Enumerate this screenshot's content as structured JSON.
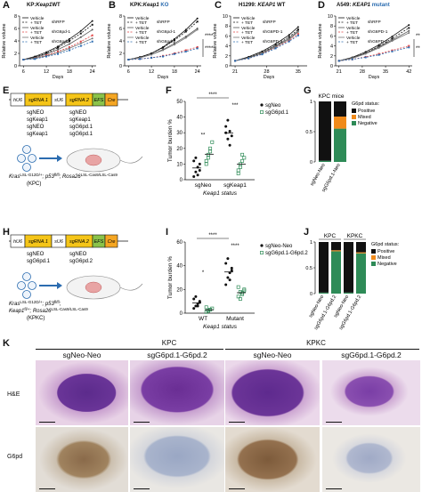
{
  "panels": {
    "A": {
      "label": "A",
      "title_prefix": "KP:",
      "title_gene": "Keap1",
      "title_suffix": "WT"
    },
    "B": {
      "label": "B",
      "title_prefix": "KPK:",
      "title_gene": "Keap1",
      "title_suffix": "KO"
    },
    "C": {
      "label": "C",
      "title_prefix": "H1299:",
      "title_gene": "KEAP1",
      "title_suffix": "WT"
    },
    "D": {
      "label": "D",
      "title_prefix": "A549:",
      "title_gene": "KEAP1",
      "title_suffix": "mutant"
    },
    "E": {
      "label": "E"
    },
    "F": {
      "label": "F"
    },
    "G": {
      "label": "G",
      "title": "KPC mice"
    },
    "H": {
      "label": "H"
    },
    "I": {
      "label": "I"
    },
    "J": {
      "label": "J"
    },
    "K": {
      "label": "K"
    }
  },
  "growth_legend": {
    "vehicle": "Vehicle",
    "tet": "+ TET",
    "A": [
      "shRFP",
      "shG6pd-1",
      "shG6pd-2"
    ],
    "B": [
      "shRFP",
      "shG6pd-1",
      "shG6pd-2"
    ],
    "C": [
      "shRFP",
      "shG6PD-1",
      "shG6PD-2"
    ],
    "D": [
      "shRFP",
      "shG6PD-1",
      "shG6PD-2"
    ]
  },
  "chart_data": [
    {
      "id": "A",
      "type": "line",
      "ylabel": "Relative volume",
      "xlabel": "Days",
      "xticks": [
        6,
        12,
        18,
        24
      ],
      "xlim": [
        5,
        25
      ],
      "yticks": [
        0,
        2,
        4,
        6,
        8
      ],
      "ylim": [
        0,
        8
      ],
      "series": [
        {
          "name": "Vehicle shRFP",
          "x": [
            6,
            9,
            12,
            15,
            18,
            21,
            24
          ],
          "values": [
            1,
            1.5,
            2.2,
            3.1,
            4.3,
            5.6,
            7.2
          ]
        },
        {
          "name": "+ TET shRFP",
          "x": [
            6,
            9,
            12,
            15,
            18,
            21,
            24
          ],
          "values": [
            1,
            1.4,
            2.0,
            2.9,
            4.0,
            5.2,
            6.6
          ]
        },
        {
          "name": "Vehicle shG6pd-1",
          "x": [
            6,
            9,
            12,
            15,
            18,
            21,
            24
          ],
          "values": [
            1,
            1.3,
            1.9,
            2.6,
            3.5,
            4.6,
            5.8
          ]
        },
        {
          "name": "+ TET shG6pd-1",
          "x": [
            6,
            9,
            12,
            15,
            18,
            21,
            24
          ],
          "values": [
            1,
            1.2,
            1.7,
            2.3,
            3.0,
            3.9,
            4.9
          ]
        },
        {
          "name": "Vehicle shG6pd-2",
          "x": [
            6,
            9,
            12,
            15,
            18,
            21,
            24
          ],
          "values": [
            1,
            1.2,
            1.6,
            2.1,
            2.8,
            3.6,
            4.4
          ]
        },
        {
          "name": "+ TET shG6pd-2",
          "x": [
            6,
            9,
            12,
            15,
            18,
            21,
            24
          ],
          "values": [
            1,
            1.1,
            1.5,
            1.9,
            2.5,
            3.2,
            3.9
          ]
        }
      ]
    },
    {
      "id": "B",
      "type": "line",
      "ylabel": "Relative volume",
      "xlabel": "Days",
      "xticks": [
        6,
        12,
        18,
        24
      ],
      "xlim": [
        5,
        25
      ],
      "yticks": [
        0,
        2,
        4,
        6,
        8
      ],
      "ylim": [
        0,
        8
      ],
      "series": [
        {
          "name": "Vehicle shRFP",
          "x": [
            6,
            9,
            12,
            15,
            18,
            21,
            24
          ],
          "values": [
            1,
            1.4,
            2.0,
            3.0,
            4.3,
            5.8,
            7.6
          ]
        },
        {
          "name": "+ TET shRFP",
          "x": [
            6,
            9,
            12,
            15,
            18,
            21,
            24
          ],
          "values": [
            1,
            1.4,
            2.0,
            2.9,
            4.1,
            5.5,
            7.1
          ]
        },
        {
          "name": "Vehicle shG6pd-1",
          "x": [
            6,
            9,
            12,
            15,
            18,
            21,
            24
          ],
          "values": [
            1,
            1.3,
            1.8,
            2.6,
            3.6,
            4.7,
            6.0
          ]
        },
        {
          "name": "+ TET shG6pd-1",
          "x": [
            6,
            9,
            12,
            15,
            18,
            21,
            24
          ],
          "values": [
            1,
            1.1,
            1.3,
            1.6,
            2.0,
            2.5,
            3.0
          ]
        },
        {
          "name": "Vehicle shG6pd-2",
          "x": [
            6,
            9,
            12,
            15,
            18,
            21,
            24
          ],
          "values": [
            1,
            1.3,
            1.8,
            2.5,
            3.4,
            4.5,
            5.8
          ]
        },
        {
          "name": "+ TET shG6pd-2",
          "x": [
            6,
            9,
            12,
            15,
            18,
            21,
            24
          ],
          "values": [
            1,
            1.1,
            1.3,
            1.5,
            1.9,
            2.3,
            2.8
          ]
        }
      ],
      "annotations": [
        "****",
        "****"
      ]
    },
    {
      "id": "C",
      "type": "line",
      "ylabel": "Relative volume",
      "xlabel": "Days",
      "xticks": [
        21,
        28,
        35
      ],
      "xlim": [
        20,
        37
      ],
      "yticks": [
        0,
        2,
        4,
        6,
        8,
        10
      ],
      "ylim": [
        0,
        10
      ],
      "series": [
        {
          "name": "Vehicle shRFP",
          "x": [
            21,
            24,
            27,
            30,
            33,
            35
          ],
          "values": [
            1,
            1.8,
            2.9,
            4.4,
            6.2,
            7.8
          ]
        },
        {
          "name": "+ TET shRFP",
          "x": [
            21,
            24,
            27,
            30,
            33,
            35
          ],
          "values": [
            1,
            1.7,
            2.7,
            4.1,
            5.8,
            7.3
          ]
        },
        {
          "name": "Vehicle shG6PD-1",
          "x": [
            21,
            24,
            27,
            30,
            33,
            35
          ],
          "values": [
            1,
            1.6,
            2.6,
            4.0,
            5.5,
            7.0
          ]
        },
        {
          "name": "+ TET shG6PD-1",
          "x": [
            21,
            24,
            27,
            30,
            33,
            35
          ],
          "values": [
            1,
            1.5,
            2.4,
            3.7,
            5.1,
            6.4
          ]
        },
        {
          "name": "Vehicle shG6PD-2",
          "x": [
            21,
            24,
            27,
            30,
            33,
            35
          ],
          "values": [
            1,
            1.6,
            2.5,
            3.8,
            5.3,
            6.8
          ]
        },
        {
          "name": "+ TET shG6PD-2",
          "x": [
            21,
            24,
            27,
            30,
            33,
            35
          ],
          "values": [
            1,
            1.5,
            2.3,
            3.5,
            4.9,
            6.1
          ]
        }
      ]
    },
    {
      "id": "D",
      "type": "line",
      "ylabel": "Relative volume",
      "xlabel": "Days",
      "xticks": [
        21,
        28,
        35,
        42
      ],
      "xlim": [
        20,
        43
      ],
      "yticks": [
        0,
        2,
        4,
        6,
        8,
        10
      ],
      "ylim": [
        0,
        10
      ],
      "series": [
        {
          "name": "Vehicle shRFP",
          "x": [
            21,
            25,
            29,
            33,
            37,
            42
          ],
          "values": [
            1,
            1.7,
            2.8,
            4.2,
            5.9,
            8.2
          ]
        },
        {
          "name": "+ TET shRFP",
          "x": [
            21,
            25,
            29,
            33,
            37,
            42
          ],
          "values": [
            1,
            1.6,
            2.6,
            3.9,
            5.5,
            7.6
          ]
        },
        {
          "name": "Vehicle shG6PD-1",
          "x": [
            21,
            25,
            29,
            33,
            37,
            42
          ],
          "values": [
            1,
            1.6,
            2.5,
            3.8,
            5.2,
            7.0
          ]
        },
        {
          "name": "+ TET shG6PD-1",
          "x": [
            21,
            25,
            29,
            33,
            37,
            42
          ],
          "values": [
            1,
            1.3,
            1.8,
            2.4,
            3.1,
            4.0
          ]
        },
        {
          "name": "Vehicle shG6PD-2",
          "x": [
            21,
            25,
            29,
            33,
            37,
            42
          ],
          "values": [
            1,
            1.5,
            2.4,
            3.6,
            5.0,
            6.6
          ]
        },
        {
          "name": "+ TET shG6PD-2",
          "x": [
            21,
            25,
            29,
            33,
            37,
            42
          ],
          "values": [
            1,
            1.3,
            1.7,
            2.2,
            2.9,
            3.7
          ]
        }
      ],
      "annotations": [
        "**",
        "**"
      ]
    },
    {
      "id": "F",
      "type": "scatter",
      "ylabel": "Tumor burden %",
      "xlabel": "Keap1 status",
      "yticks": [
        0,
        10,
        20,
        30,
        40,
        50
      ],
      "ylim": [
        0,
        50
      ],
      "categories": [
        "sgNeo",
        "sgKeap1"
      ],
      "series": [
        {
          "name": "sgNeo",
          "values": [
            [
              2,
              5,
              8,
              10,
              12,
              14,
              3,
              6
            ],
            [
              30,
              38,
              22,
              28,
              34,
              26,
              31
            ]
          ]
        },
        {
          "name": "sgG6pd.1",
          "values": [
            [
              10,
              14,
              18,
              24,
              12,
              16,
              20
            ],
            [
              4,
              8,
              12,
              14,
              6,
              10,
              16
            ]
          ]
        }
      ],
      "annotations": [
        "****",
        "**",
        "***"
      ]
    },
    {
      "id": "G",
      "type": "bar",
      "title": "KPC mice",
      "categories": [
        "sgNeo-Neo",
        "sgG6pd.1-Neo"
      ],
      "yticks": [
        0,
        0.5,
        1.0
      ],
      "ylim": [
        0,
        1
      ],
      "legend_title": "G6pd status:",
      "series": [
        {
          "name": "Negative",
          "values": [
            0.02,
            0.55
          ]
        },
        {
          "name": "Mixed",
          "values": [
            0,
            0.2
          ]
        },
        {
          "name": "Positive",
          "values": [
            0.98,
            0.25
          ]
        }
      ]
    },
    {
      "id": "I",
      "type": "scatter",
      "ylabel": "Tumor burden %",
      "xlabel": "Keap1 status",
      "yticks": [
        0,
        20,
        40,
        60
      ],
      "ylim": [
        0,
        60
      ],
      "categories": [
        "WT",
        "Mutant"
      ],
      "series": [
        {
          "name": "sgNeo-Neo",
          "values": [
            [
              4,
              6,
              8,
              10,
              12,
              14,
              6,
              9
            ],
            [
              24,
              30,
              34,
              38,
              42,
              46,
              28,
              36
            ]
          ]
        },
        {
          "name": "sgG6pd.1-G6pd.2",
          "values": [
            [
              1,
              2,
              3,
              4,
              5,
              2,
              3
            ],
            [
              14,
              18,
              16,
              20,
              22,
              12,
              17,
              19
            ]
          ]
        }
      ],
      "annotations": [
        "****",
        "*",
        "****"
      ]
    },
    {
      "id": "J",
      "type": "bar",
      "categories": [
        "sgNeo-Neo",
        "sgG6pd.1-G6pd.2",
        "sgNeo-Neo",
        "sgG6pd.1-G6pd.2"
      ],
      "groups": [
        "KPC",
        "KPKC"
      ],
      "yticks": [
        0,
        0.5,
        1.0
      ],
      "ylim": [
        0,
        1
      ],
      "legend_title": "G6pd status:",
      "series": [
        {
          "name": "Negative",
          "values": [
            0.02,
            0.82,
            0.02,
            0.78
          ]
        },
        {
          "name": "Mixed",
          "values": [
            0,
            0.02,
            0,
            0.02
          ]
        },
        {
          "name": "Positive",
          "values": [
            0.98,
            0.16,
            0.98,
            0.2
          ]
        }
      ]
    }
  ],
  "colors": {
    "black": "#111111",
    "green": "#2e8b57",
    "pink": "#e04040",
    "blue": "#2b6cb0",
    "orange": "#f08a1a",
    "gene_yellow": "#f5c518",
    "gene_green": "#8bc34a",
    "gene_orange": "#f5a623",
    "gene_blue": "#4a90d9"
  },
  "construct_E": {
    "boxes": [
      "hU6",
      "sgRNA.1",
      "sU6",
      "sgRNA.2",
      "EFS",
      "Cre"
    ],
    "rows": [
      [
        "sgNEO",
        "sgNEO"
      ],
      [
        "sgKeap1",
        "sgKeap1"
      ],
      [
        "sgNEO",
        "sgG6pd.1"
      ],
      [
        "sgKeap1",
        "sgG6pd.1"
      ]
    ],
    "genotype": "Kras",
    "genotype_sup": "LSL-G12D/+",
    "genotype_mid": "; p53",
    "genotype_sup2": "fl/fl",
    "genotype_mid2": "; Rosa26",
    "genotype_sup3": "LSL-Cas9/LSL-Cas9",
    "model": "(KPC)"
  },
  "construct_H": {
    "boxes": [
      "hU6",
      "sgRNA.1",
      "sU6",
      "sgRNA.2",
      "EFS",
      "Cre"
    ],
    "rows": [
      [
        "sgNEO",
        "sgNEO"
      ],
      [
        "sgG6pd.1",
        "sgG6pd.2"
      ]
    ],
    "genotype": "Kras",
    "genotype_sup": "LSL-G12D/+",
    "genotype_mid": "; p53",
    "genotype_sup2": "fl/fl",
    "genotype_mid2": ";",
    "genotype2": "Keap1",
    "genotype2_sup": "fl/+",
    "genotype2_mid": "; Rosa26",
    "genotype2_sup2": "LSL-Cas9/LSL-Cas9",
    "model": "(KPKC)"
  },
  "histology": {
    "groups": [
      "KPC",
      "KPKC"
    ],
    "columns": [
      "sgNeo-Neo",
      "sgG6pd.1-G6pd.2",
      "sgNeo-Neo",
      "sgG6pd.1-G6pd.2"
    ],
    "rows": [
      "H&E",
      "G6pd"
    ]
  }
}
